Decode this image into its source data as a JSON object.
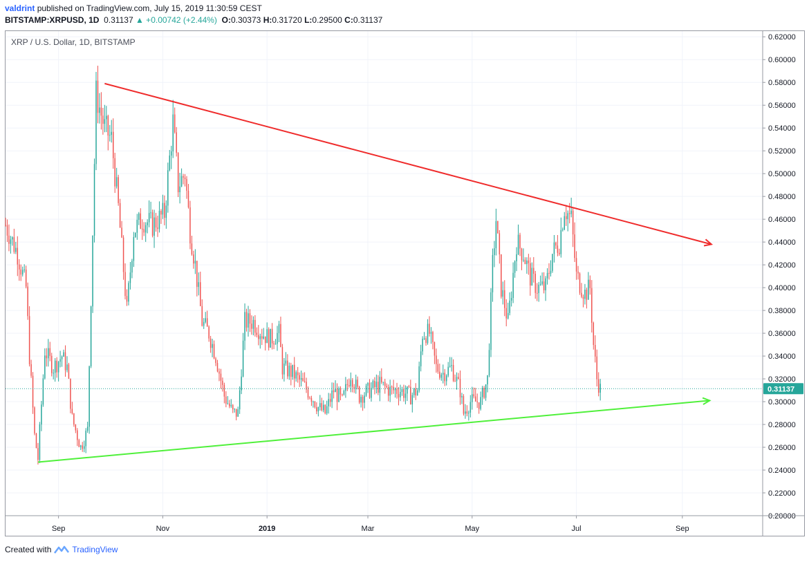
{
  "header": {
    "user": "valdrint",
    "published": "published on TradingView.com, July 15, 2019 11:30:59 CEST",
    "symbol": "BITSTAMP:XRPUSD, 1D",
    "last": "0.31137",
    "change": "▲ +0.00742 (+2.44%)",
    "open_label": "O:",
    "open": "0.30373",
    "high_label": "H:",
    "high": "0.31720",
    "low_label": "L:",
    "low": "0.29500",
    "close_label": "C:",
    "close": "0.31137"
  },
  "legend": "XRP / U.S. Dollar, 1D, BITSTAMP",
  "footer": {
    "created": "Created with",
    "brand": "TradingView"
  },
  "colors": {
    "up": "#26a69a",
    "down": "#ef5350",
    "resistance": "#ef2b2b",
    "support": "#4ff03a",
    "price_badge": "#26a69a"
  },
  "chart_data": {
    "type": "candlestick",
    "title": "XRP / U.S. Dollar, 1D, BITSTAMP",
    "x_start": "2018-08-01",
    "x_end": "2019-10-18",
    "ylim": [
      0.2,
      0.625
    ],
    "y_ticks": [
      "0.62000",
      "0.60000",
      "0.58000",
      "0.56000",
      "0.54000",
      "0.52000",
      "0.50000",
      "0.48000",
      "0.46000",
      "0.44000",
      "0.42000",
      "0.40000",
      "0.38000",
      "0.36000",
      "0.34000",
      "0.32000",
      "0.30000",
      "0.28000",
      "0.26000",
      "0.24000",
      "0.22000",
      "0.20000"
    ],
    "x_ticks": [
      {
        "label": "Sep",
        "date": "2018-09-01"
      },
      {
        "label": "Nov",
        "date": "2018-11-01"
      },
      {
        "label": "2019",
        "date": "2019-01-01"
      },
      {
        "label": "Mar",
        "date": "2019-03-01"
      },
      {
        "label": "May",
        "date": "2019-05-01"
      },
      {
        "label": "Jul",
        "date": "2019-07-01"
      },
      {
        "label": "Sep",
        "date": "2019-09-01"
      }
    ],
    "last_price": "0.31137",
    "closes": [
      {
        "date": "2018-08-01",
        "close": 0.455
      },
      {
        "date": "2018-08-08",
        "close": 0.43
      },
      {
        "date": "2018-08-13",
        "close": 0.4
      },
      {
        "date": "2018-08-15",
        "close": 0.34
      },
      {
        "date": "2018-08-18",
        "close": 0.27
      },
      {
        "date": "2018-08-20",
        "close": 0.25
      },
      {
        "date": "2018-08-24",
        "close": 0.345
      },
      {
        "date": "2018-08-29",
        "close": 0.33
      },
      {
        "date": "2018-09-03",
        "close": 0.34
      },
      {
        "date": "2018-09-06",
        "close": 0.33
      },
      {
        "date": "2018-09-09",
        "close": 0.285
      },
      {
        "date": "2018-09-14",
        "close": 0.26
      },
      {
        "date": "2018-09-18",
        "close": 0.275
      },
      {
        "date": "2018-09-21",
        "close": 0.45
      },
      {
        "date": "2018-09-23",
        "close": 0.57
      },
      {
        "date": "2018-09-28",
        "close": 0.54
      },
      {
        "date": "2018-10-02",
        "close": 0.53
      },
      {
        "date": "2018-10-06",
        "close": 0.47
      },
      {
        "date": "2018-10-11",
        "close": 0.38
      },
      {
        "date": "2018-10-15",
        "close": 0.45
      },
      {
        "date": "2018-10-20",
        "close": 0.46
      },
      {
        "date": "2018-10-26",
        "close": 0.455
      },
      {
        "date": "2018-11-02",
        "close": 0.465
      },
      {
        "date": "2018-11-07",
        "close": 0.545
      },
      {
        "date": "2018-11-10",
        "close": 0.49
      },
      {
        "date": "2018-11-14",
        "close": 0.5
      },
      {
        "date": "2018-11-17",
        "close": 0.45
      },
      {
        "date": "2018-11-20",
        "close": 0.42
      },
      {
        "date": "2018-11-24",
        "close": 0.37
      },
      {
        "date": "2018-11-28",
        "close": 0.36
      },
      {
        "date": "2018-12-02",
        "close": 0.34
      },
      {
        "date": "2018-12-07",
        "close": 0.305
      },
      {
        "date": "2018-12-12",
        "close": 0.29
      },
      {
        "date": "2018-12-15",
        "close": 0.29
      },
      {
        "date": "2018-12-19",
        "close": 0.37
      },
      {
        "date": "2018-12-24",
        "close": 0.37
      },
      {
        "date": "2018-12-29",
        "close": 0.36
      },
      {
        "date": "2019-01-03",
        "close": 0.355
      },
      {
        "date": "2019-01-08",
        "close": 0.36
      },
      {
        "date": "2019-01-10",
        "close": 0.33
      },
      {
        "date": "2019-01-16",
        "close": 0.325
      },
      {
        "date": "2019-01-22",
        "close": 0.315
      },
      {
        "date": "2019-01-27",
        "close": 0.305
      },
      {
        "date": "2019-01-31",
        "close": 0.295
      },
      {
        "date": "2019-02-04",
        "close": 0.29
      },
      {
        "date": "2019-02-09",
        "close": 0.31
      },
      {
        "date": "2019-02-14",
        "close": 0.3
      },
      {
        "date": "2019-02-19",
        "close": 0.325
      },
      {
        "date": "2019-02-24",
        "close": 0.305
      },
      {
        "date": "2019-03-02",
        "close": 0.31
      },
      {
        "date": "2019-03-08",
        "close": 0.315
      },
      {
        "date": "2019-03-14",
        "close": 0.31
      },
      {
        "date": "2019-03-20",
        "close": 0.31
      },
      {
        "date": "2019-03-26",
        "close": 0.305
      },
      {
        "date": "2019-03-30",
        "close": 0.31
      },
      {
        "date": "2019-04-02",
        "close": 0.36
      },
      {
        "date": "2019-04-06",
        "close": 0.36
      },
      {
        "date": "2019-04-10",
        "close": 0.33
      },
      {
        "date": "2019-04-14",
        "close": 0.325
      },
      {
        "date": "2019-04-19",
        "close": 0.33
      },
      {
        "date": "2019-04-24",
        "close": 0.31
      },
      {
        "date": "2019-04-26",
        "close": 0.29
      },
      {
        "date": "2019-04-30",
        "close": 0.3
      },
      {
        "date": "2019-05-06",
        "close": 0.3
      },
      {
        "date": "2019-05-10",
        "close": 0.32
      },
      {
        "date": "2019-05-13",
        "close": 0.42
      },
      {
        "date": "2019-05-15",
        "close": 0.46
      },
      {
        "date": "2019-05-18",
        "close": 0.4
      },
      {
        "date": "2019-05-22",
        "close": 0.37
      },
      {
        "date": "2019-05-27",
        "close": 0.44
      },
      {
        "date": "2019-05-31",
        "close": 0.43
      },
      {
        "date": "2019-06-04",
        "close": 0.41
      },
      {
        "date": "2019-06-08",
        "close": 0.4
      },
      {
        "date": "2019-06-13",
        "close": 0.4
      },
      {
        "date": "2019-06-17",
        "close": 0.43
      },
      {
        "date": "2019-06-21",
        "close": 0.44
      },
      {
        "date": "2019-06-24",
        "close": 0.47
      },
      {
        "date": "2019-06-28",
        "close": 0.46
      },
      {
        "date": "2019-07-01",
        "close": 0.41
      },
      {
        "date": "2019-07-06",
        "close": 0.395
      },
      {
        "date": "2019-07-09",
        "close": 0.4
      },
      {
        "date": "2019-07-11",
        "close": 0.35
      },
      {
        "date": "2019-07-13",
        "close": 0.32
      },
      {
        "date": "2019-07-15",
        "close": 0.311
      }
    ],
    "trendlines": [
      {
        "name": "resistance",
        "points": [
          {
            "date": "2018-09-28",
            "value": 0.579
          },
          {
            "date": "2019-09-18",
            "value": 0.438
          }
        ],
        "arrow": true
      },
      {
        "name": "support",
        "points": [
          {
            "date": "2018-08-20",
            "value": 0.247
          },
          {
            "date": "2019-09-17",
            "value": 0.301
          }
        ],
        "arrow": true
      }
    ]
  }
}
